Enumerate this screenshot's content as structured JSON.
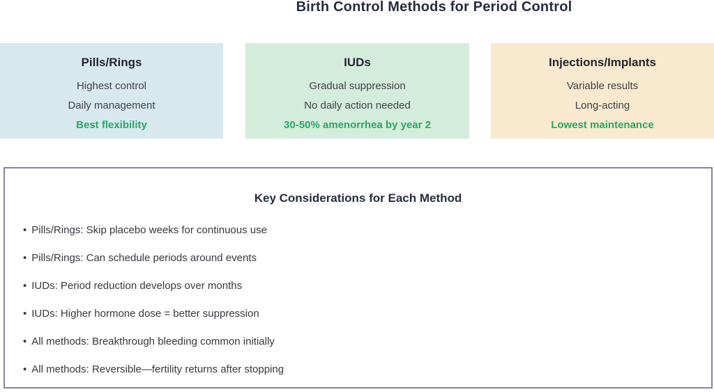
{
  "page_title": "Birth Control Methods for Period Control",
  "colors": {
    "highlight_green": "#29a866",
    "panel_border": "#8486a0"
  },
  "cards": [
    {
      "title": "Pills/Rings",
      "bg": "#d7e9ee",
      "lines": [
        "Highest control",
        "Daily management"
      ],
      "highlight": "Best flexibility"
    },
    {
      "title": "IUDs",
      "bg": "#d4ecdb",
      "lines": [
        "Gradual suppression",
        "No daily action needed"
      ],
      "highlight": "30-50% amenorrhea by year 2"
    },
    {
      "title": "Injections/Implants",
      "bg": "#f9e9cf",
      "lines": [
        "Variable results",
        "Long-acting"
      ],
      "highlight": "Lowest maintenance"
    }
  ],
  "considerations": {
    "title": "Key Considerations for Each Method",
    "bullet": "•",
    "items": [
      "Pills/Rings: Skip placebo weeks for continuous use",
      "Pills/Rings: Can schedule periods around events",
      "IUDs: Period reduction develops over months",
      "IUDs: Higher hormone dose = better suppression",
      "All methods: Breakthrough bleeding common initially",
      "All methods: Reversible—fertility returns after stopping"
    ]
  }
}
